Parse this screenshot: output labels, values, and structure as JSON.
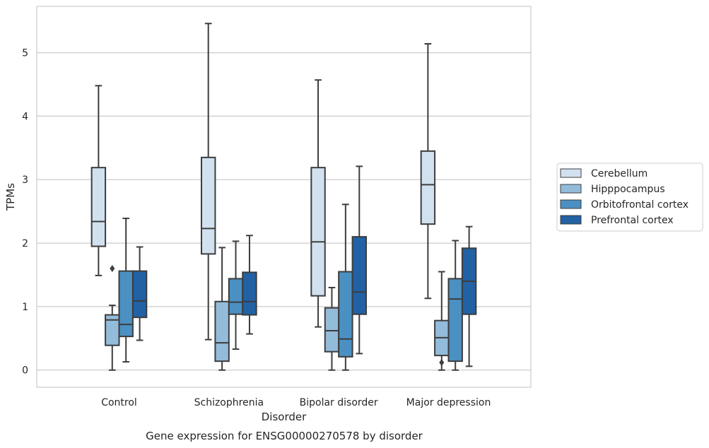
{
  "chart_data": {
    "type": "boxplot",
    "title": "Gene expression for ENSG00000270578 by disorder",
    "xlabel": "Disorder",
    "ylabel": "TPMs",
    "ylim": [
      -0.27,
      5.73
    ],
    "yticks": [
      0,
      1,
      2,
      3,
      4,
      5
    ],
    "grid": true,
    "legend_position": "right",
    "categories": [
      "Control",
      "Schizophrenia",
      "Bipolar disorder",
      "Major depression"
    ],
    "series": [
      {
        "name": "Cerebellum",
        "color": "#d1e1ef",
        "boxes": [
          {
            "q1": 1.95,
            "median": 2.34,
            "q3": 3.19,
            "whisker_low": 1.49,
            "whisker_high": 4.48,
            "outliers": []
          },
          {
            "q1": 1.83,
            "median": 2.23,
            "q3": 3.35,
            "whisker_low": 0.48,
            "whisker_high": 5.46,
            "outliers": []
          },
          {
            "q1": 1.17,
            "median": 2.02,
            "q3": 3.19,
            "whisker_low": 0.68,
            "whisker_high": 4.57,
            "outliers": []
          },
          {
            "q1": 2.3,
            "median": 2.92,
            "q3": 3.45,
            "whisker_low": 1.13,
            "whisker_high": 5.14,
            "outliers": []
          }
        ]
      },
      {
        "name": "Hipppocampus",
        "color": "#93bcdb",
        "boxes": [
          {
            "q1": 0.39,
            "median": 0.79,
            "q3": 0.87,
            "whisker_low": 0.0,
            "whisker_high": 1.02,
            "outliers": [
              1.6
            ]
          },
          {
            "q1": 0.14,
            "median": 0.43,
            "q3": 1.08,
            "whisker_low": 0.0,
            "whisker_high": 1.93,
            "outliers": []
          },
          {
            "q1": 0.29,
            "median": 0.62,
            "q3": 0.98,
            "whisker_low": 0.0,
            "whisker_high": 1.3,
            "outliers": []
          },
          {
            "q1": 0.23,
            "median": 0.51,
            "q3": 0.78,
            "whisker_low": 0.0,
            "whisker_high": 1.55,
            "outliers": [
              0.12
            ]
          }
        ]
      },
      {
        "name": "Orbitofrontal cortex",
        "color": "#4b90c2",
        "boxes": [
          {
            "q1": 0.53,
            "median": 0.72,
            "q3": 1.56,
            "whisker_low": 0.13,
            "whisker_high": 2.39,
            "outliers": []
          },
          {
            "q1": 0.88,
            "median": 1.07,
            "q3": 1.44,
            "whisker_low": 0.33,
            "whisker_high": 2.03,
            "outliers": []
          },
          {
            "q1": 0.21,
            "median": 0.49,
            "q3": 1.55,
            "whisker_low": 0.0,
            "whisker_high": 2.61,
            "outliers": []
          },
          {
            "q1": 0.14,
            "median": 1.12,
            "q3": 1.44,
            "whisker_low": 0.0,
            "whisker_high": 2.04,
            "outliers": []
          }
        ]
      },
      {
        "name": "Prefrontal cortex",
        "color": "#2161a4",
        "boxes": [
          {
            "q1": 0.83,
            "median": 1.09,
            "q3": 1.56,
            "whisker_low": 0.47,
            "whisker_high": 1.94,
            "outliers": []
          },
          {
            "q1": 0.87,
            "median": 1.08,
            "q3": 1.54,
            "whisker_low": 0.57,
            "whisker_high": 2.12,
            "outliers": []
          },
          {
            "q1": 0.88,
            "median": 1.23,
            "q3": 2.1,
            "whisker_low": 0.26,
            "whisker_high": 3.21,
            "outliers": []
          },
          {
            "q1": 0.88,
            "median": 1.4,
            "q3": 1.92,
            "whisker_low": 0.06,
            "whisker_high": 2.26,
            "outliers": []
          }
        ]
      }
    ]
  }
}
